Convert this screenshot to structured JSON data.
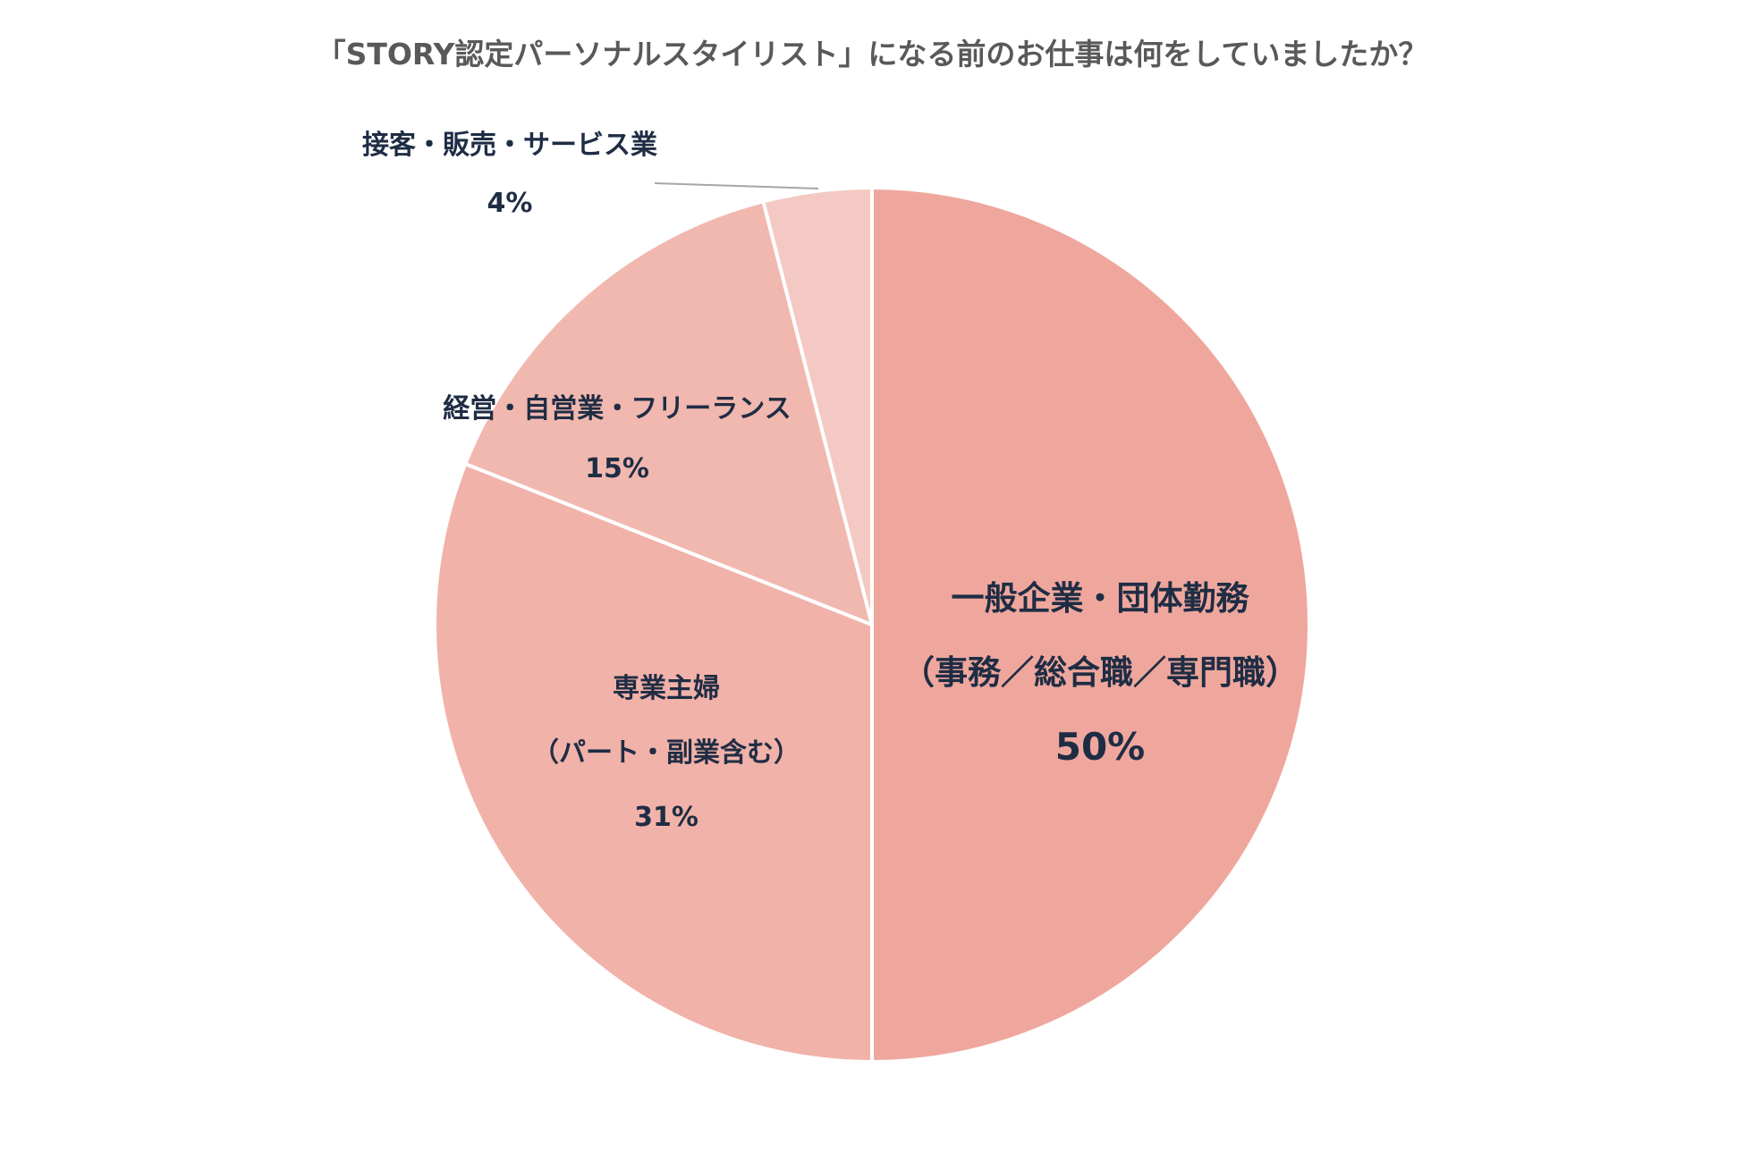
{
  "title": "「STORY認定パーソナルスタイリスト」になる前のお仕事は何をしていましたか？",
  "chart_data": {
    "type": "pie",
    "title": "「STORY認定パーソナルスタイリスト」になる前のお仕事は何をしていましたか？",
    "start_angle": "12 o'clock, clockwise",
    "categories": [
      "一般企業・団体勤務（事務／総合職／専門職）",
      "専業主婦（パート・副業含む）",
      "経営・自営業・フリーランス",
      "接客・販売・サービス業"
    ],
    "values": [
      50,
      31,
      15,
      4
    ],
    "unit": "%",
    "colors": [
      "#EFA79D",
      "#F1B2A9",
      "#F1B8AF",
      "#F4C9C3"
    ],
    "legend": "none (data labels on/near slices)"
  },
  "labels": {
    "s0": {
      "line1": "一般企業・団体勤務",
      "line2": "（事務／総合職／専門職）",
      "pct": "50%"
    },
    "s1": {
      "line1": "専業主婦",
      "line2": "（パート・副業含む）",
      "pct": "31%"
    },
    "s2": {
      "line1": "経営・自営業・フリーランス",
      "pct": "15%"
    },
    "s3": {
      "line1": "接客・販売・サービス業",
      "pct": "4%"
    }
  },
  "colors": {
    "title": "#595959",
    "label": "#1F2D44",
    "leader_line": "#A6A6A6",
    "separator": "#FFFFFF"
  }
}
